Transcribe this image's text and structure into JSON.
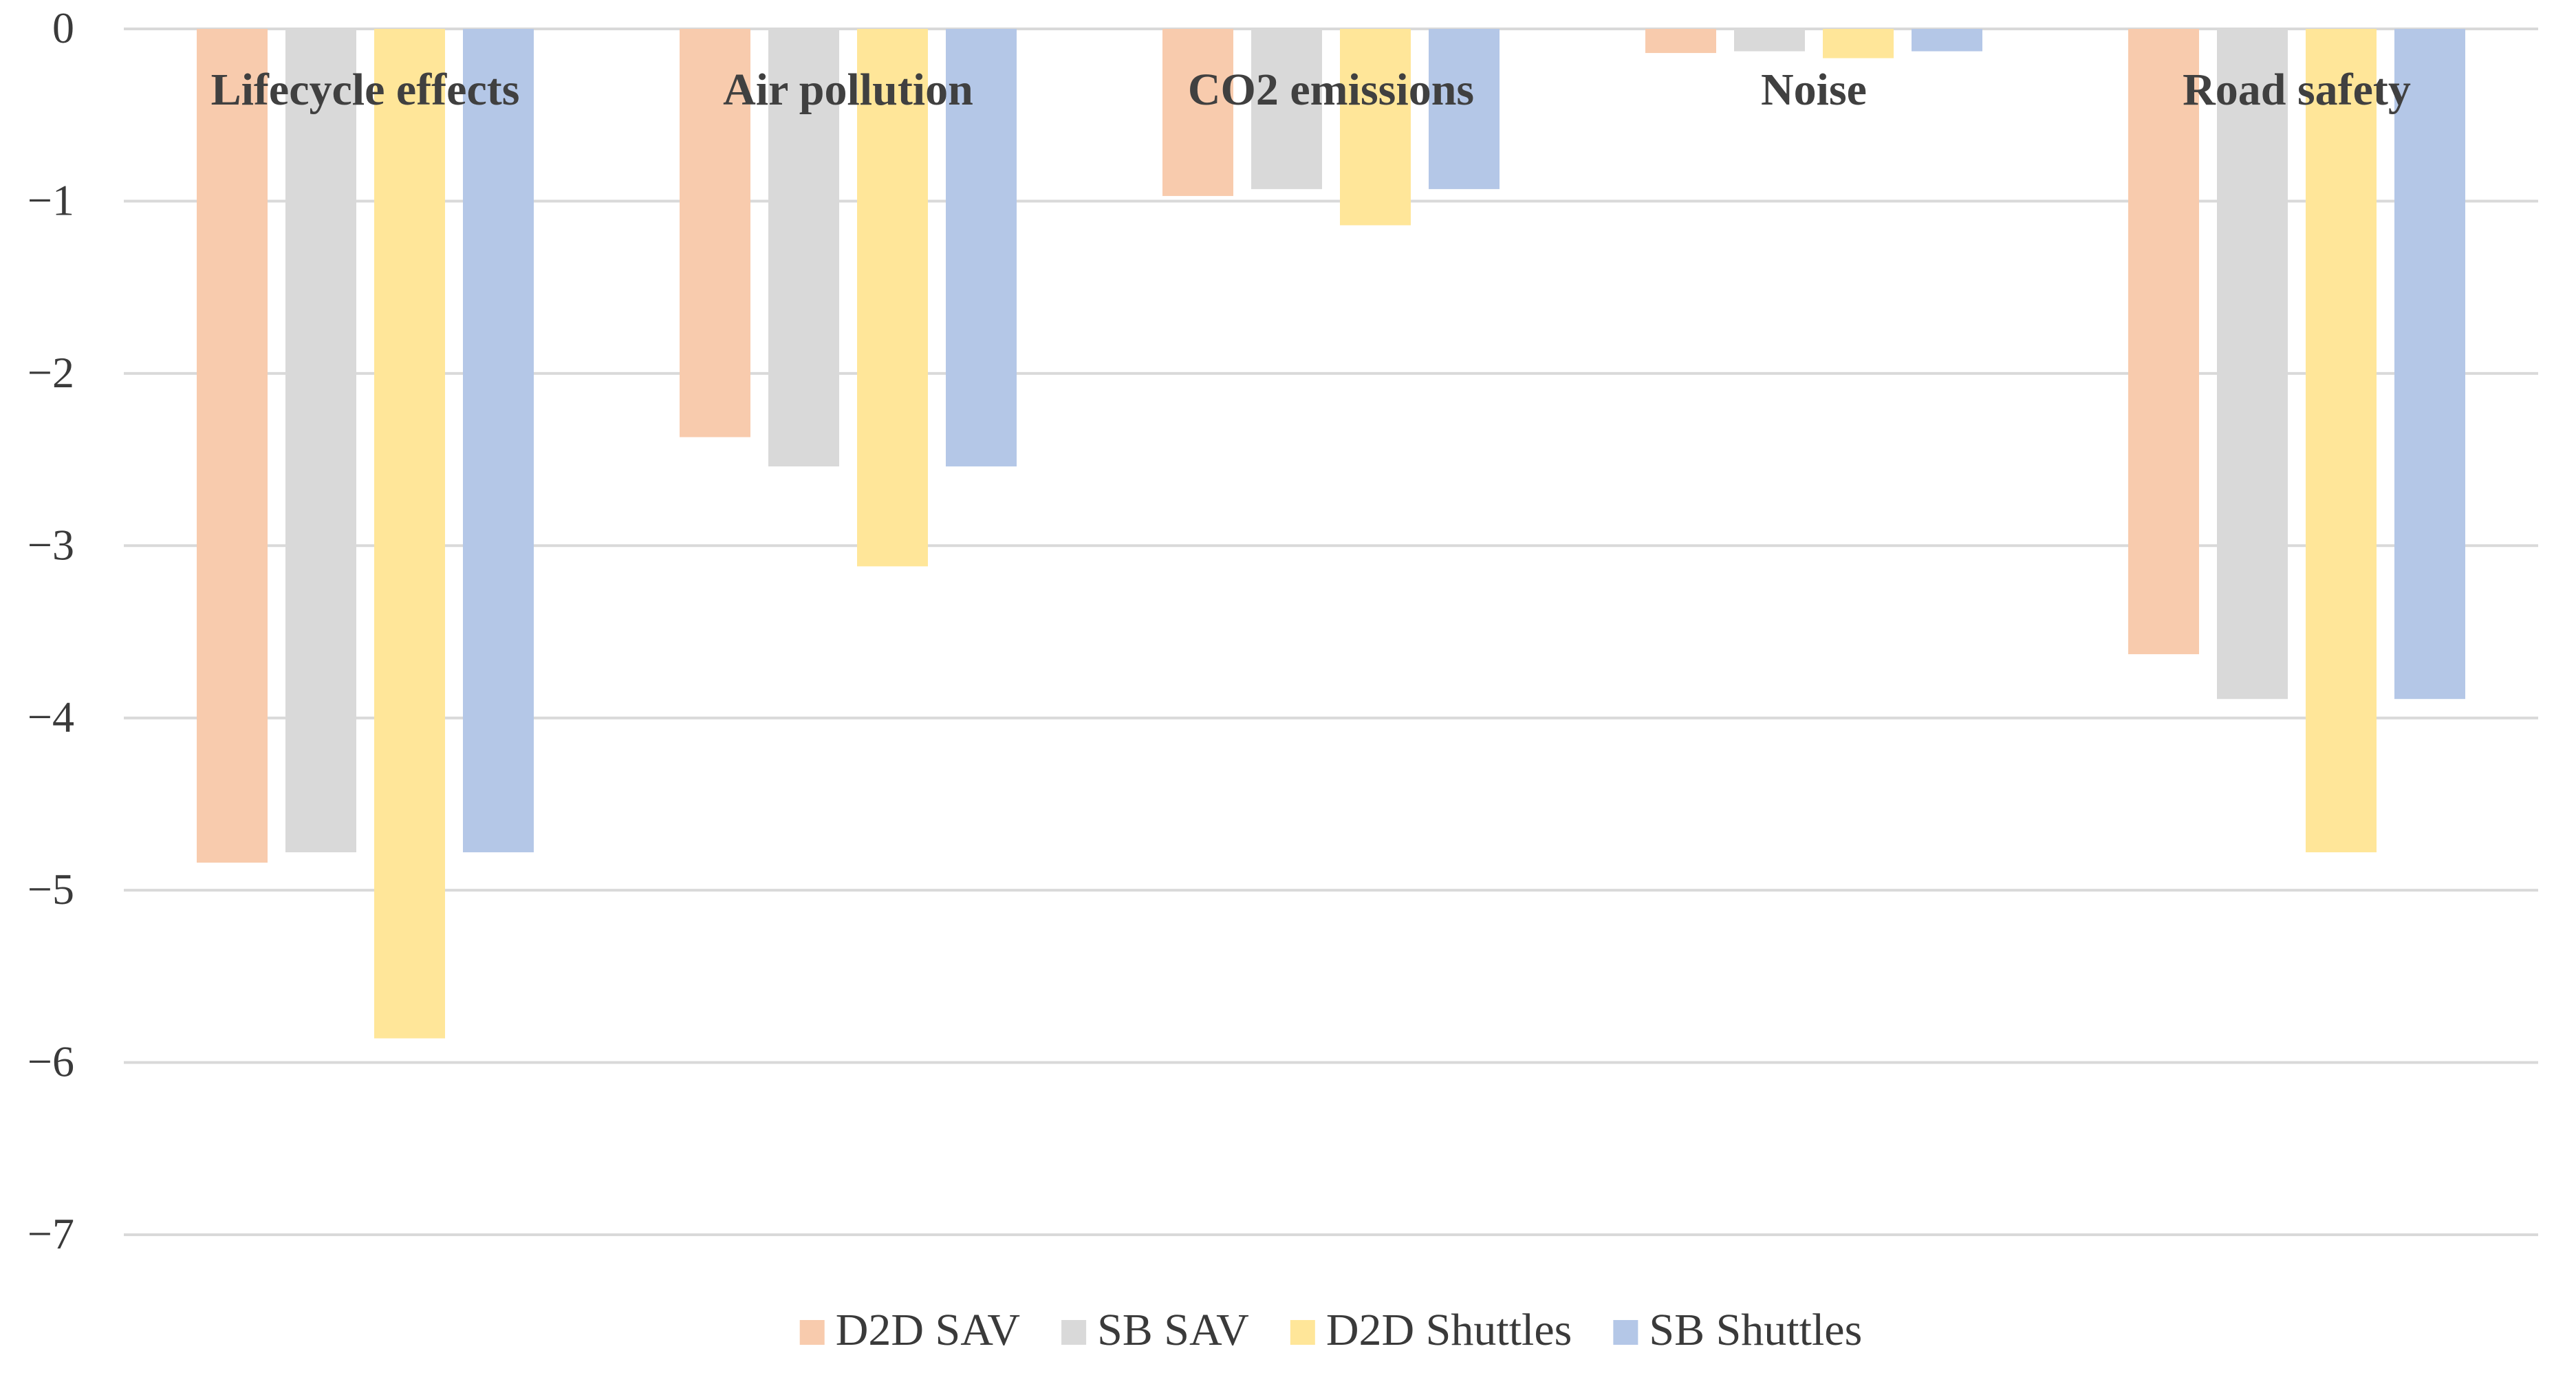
{
  "chart_data": {
    "type": "bar",
    "title": "",
    "xlabel": "",
    "ylabel": "",
    "ylim": [
      -7,
      0
    ],
    "yticks": [
      0,
      -1,
      -2,
      -3,
      -4,
      -5,
      -6,
      -7
    ],
    "ytick_labels": [
      "0",
      "−1",
      "−2",
      "−3",
      "−4",
      "−5",
      "−6",
      "−7"
    ],
    "grid": true,
    "legend_position": "bottom",
    "categories": [
      "Lifecycle effects",
      "Air pollution",
      "CO2 emissions",
      "Noise",
      "Road safety"
    ],
    "series": [
      {
        "name": "D2D SAV",
        "color": "#f8cbad",
        "values": [
          -4.84,
          -2.37,
          -0.97,
          -0.14,
          -3.63
        ]
      },
      {
        "name": "SB SAV",
        "color": "#d9d9d9",
        "values": [
          -4.78,
          -2.54,
          -0.93,
          -0.13,
          -3.89
        ]
      },
      {
        "name": "D2D Shuttles",
        "color": "#ffe699",
        "values": [
          -5.86,
          -3.12,
          -1.14,
          -0.17,
          -4.78
        ]
      },
      {
        "name": "SB Shuttles",
        "color": "#b4c7e7",
        "values": [
          -4.78,
          -2.54,
          -0.93,
          -0.13,
          -3.89
        ]
      }
    ]
  }
}
